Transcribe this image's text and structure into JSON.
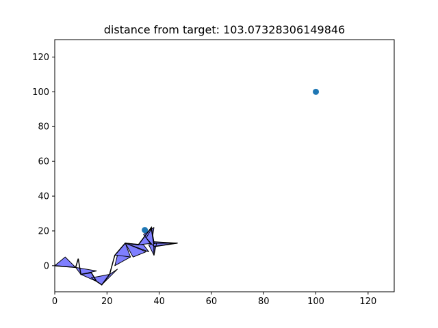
{
  "chart_data": {
    "type": "scatter",
    "title": "distance from target: 103.07328306149846",
    "xlabel": "",
    "ylabel": "",
    "xlim": [
      0,
      130
    ],
    "ylim": [
      -15,
      130
    ],
    "x_ticks": [
      "0",
      "20",
      "40",
      "60",
      "80",
      "100",
      "120"
    ],
    "y_ticks": [
      "0",
      "20",
      "40",
      "60",
      "80",
      "100",
      "120"
    ],
    "grid": false,
    "points": [
      {
        "x": 100,
        "y": 100
      },
      {
        "x": 34.5,
        "y": 20.5
      }
    ],
    "triangles": [
      [
        [
          0,
          0
        ],
        [
          4,
          5
        ],
        [
          8,
          -1
        ]
      ],
      [
        [
          8,
          -1
        ],
        [
          10,
          -5
        ],
        [
          16,
          -3
        ]
      ],
      [
        [
          10,
          -5
        ],
        [
          14,
          -4
        ],
        [
          16,
          -9
        ]
      ],
      [
        [
          14,
          -7
        ],
        [
          18,
          -11
        ],
        [
          21,
          -5
        ]
      ],
      [
        [
          18,
          -11
        ],
        [
          24,
          -2
        ],
        [
          21,
          -5
        ]
      ],
      [
        [
          23,
          6
        ],
        [
          27,
          13
        ],
        [
          29,
          5
        ]
      ],
      [
        [
          24,
          6
        ],
        [
          23,
          0
        ],
        [
          29,
          5
        ]
      ],
      [
        [
          27,
          13
        ],
        [
          30,
          5
        ],
        [
          35,
          8
        ]
      ],
      [
        [
          27,
          13
        ],
        [
          36,
          8
        ],
        [
          34,
          12
        ]
      ],
      [
        [
          32,
          12
        ],
        [
          37,
          22
        ],
        [
          38,
          13
        ]
      ],
      [
        [
          34,
          18
        ],
        [
          38,
          22
        ],
        [
          37,
          12
        ]
      ],
      [
        [
          36,
          14
        ],
        [
          47,
          13
        ],
        [
          38,
          11
        ]
      ],
      [
        [
          36,
          12
        ],
        [
          38,
          6
        ],
        [
          39,
          13
        ]
      ],
      [
        [
          35,
          16
        ],
        [
          37,
          21
        ],
        [
          38,
          11
        ]
      ]
    ],
    "polyline": [
      [
        0,
        0
      ],
      [
        8,
        -1
      ],
      [
        9,
        4
      ],
      [
        10,
        -5
      ],
      [
        14,
        -4
      ],
      [
        16,
        -9
      ],
      [
        18,
        -11
      ],
      [
        21,
        -5
      ],
      [
        23,
        6
      ],
      [
        27,
        13
      ],
      [
        32,
        12
      ],
      [
        37,
        22
      ],
      [
        38,
        13
      ],
      [
        47,
        13
      ],
      [
        38,
        11
      ],
      [
        38,
        6
      ]
    ],
    "marker_color": "#1f77b4",
    "shape_fill": "#7f7fff",
    "shape_edge": "#000000"
  }
}
